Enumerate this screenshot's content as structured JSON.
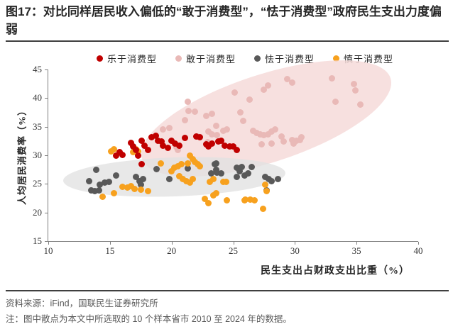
{
  "title": "图17：对比同样居民收入偏低的“敢于消费型”，“怯于消费型”政府民生支出力度偏弱",
  "legend": [
    {
      "label": "乐于消费型",
      "color": "#C00000"
    },
    {
      "label": "敢于消费型",
      "color": "#E9B9B7"
    },
    {
      "label": "怯于消费型",
      "color": "#595959"
    },
    {
      "label": "慎于消费型",
      "color": "#F7A11E"
    }
  ],
  "chart_data": {
    "type": "scatter",
    "xlabel": "民生支出占财政支出比重（%）",
    "ylabel": "人均居民消费率（%）",
    "xlim": [
      10,
      40
    ],
    "ylim": [
      15,
      45
    ],
    "xticks": [
      10,
      15,
      20,
      25,
      30,
      35,
      40
    ],
    "yticks": [
      15,
      20,
      25,
      30,
      35,
      40,
      45
    ],
    "grid": false,
    "legend_position": "top",
    "render_order": [
      1,
      2,
      3,
      0
    ],
    "annotations": [
      {
        "name": "pink-cluster-ellipse",
        "type": "ellipse",
        "cx": 27.7,
        "cy": 36.4,
        "rx": 10.6,
        "ry": 7.7,
        "rotate_deg": -18,
        "fill": "rgba(246,218,217,0.85)"
      },
      {
        "name": "gray-cluster-ellipse",
        "type": "ellipse",
        "cx": 20.2,
        "cy": 26.2,
        "rx": 9.0,
        "ry": 3.4,
        "rotate_deg": -2,
        "fill": "rgba(226,226,226,0.78)"
      }
    ],
    "series": [
      {
        "name": "乐于消费型",
        "color": "#C00000",
        "points": [
          [
            15.5,
            29.9
          ],
          [
            15.8,
            30.6
          ],
          [
            16.0,
            30.1
          ],
          [
            16.7,
            32.2
          ],
          [
            16.9,
            31.6
          ],
          [
            17.1,
            30.9
          ],
          [
            17.3,
            29.9
          ],
          [
            17.6,
            32.5
          ],
          [
            17.8,
            31.7
          ],
          [
            18.1,
            30.9
          ],
          [
            18.4,
            33.2
          ],
          [
            18.7,
            33.4
          ],
          [
            18.9,
            32.6
          ],
          [
            19.2,
            32.4
          ],
          [
            19.3,
            31.7
          ],
          [
            19.7,
            31.3
          ],
          [
            20.0,
            32.6
          ],
          [
            20.3,
            32.1
          ],
          [
            20.6,
            31.7
          ],
          [
            21.1,
            33.0
          ],
          [
            22.0,
            33.3
          ],
          [
            22.3,
            33.2
          ],
          [
            22.8,
            31.9
          ],
          [
            23.0,
            31.5
          ],
          [
            23.3,
            32.0
          ],
          [
            23.8,
            32.4
          ],
          [
            24.0,
            32.6
          ],
          [
            24.3,
            31.7
          ],
          [
            24.7,
            31.5
          ],
          [
            25.0,
            31.5
          ],
          [
            25.3,
            30.9
          ],
          [
            17.6,
            28.5
          ]
        ]
      },
      {
        "name": "敢于消费型",
        "color": "#E9B9B7",
        "points": [
          [
            19.3,
            34.5
          ],
          [
            19.8,
            34.8
          ],
          [
            20.4,
            31.4
          ],
          [
            20.5,
            30.9
          ],
          [
            21.3,
            39.4
          ],
          [
            21.1,
            36.1
          ],
          [
            21.4,
            37.7
          ],
          [
            21.9,
            37.6
          ],
          [
            22.1,
            33.3
          ],
          [
            22.8,
            36.9
          ],
          [
            22.9,
            32.3
          ],
          [
            23.0,
            34.1
          ],
          [
            23.3,
            37.3
          ],
          [
            23.3,
            33.7
          ],
          [
            23.6,
            35.2
          ],
          [
            23.7,
            33.5
          ],
          [
            24.2,
            34.3
          ],
          [
            24.5,
            34.5
          ],
          [
            25.1,
            41.0
          ],
          [
            25.6,
            37.5
          ],
          [
            25.8,
            36.0
          ],
          [
            26.3,
            39.7
          ],
          [
            26.6,
            34.3
          ],
          [
            26.9,
            33.9
          ],
          [
            27.2,
            33.7
          ],
          [
            27.5,
            33.5
          ],
          [
            27.8,
            33.7
          ],
          [
            28.1,
            34.1
          ],
          [
            28.4,
            34.5
          ],
          [
            27.5,
            41.5
          ],
          [
            27.8,
            42.2
          ],
          [
            28.9,
            33.3
          ],
          [
            29.4,
            43.3
          ],
          [
            29.8,
            42.7
          ],
          [
            29.8,
            32.7
          ],
          [
            30.1,
            32.5
          ],
          [
            27.3,
            31.9
          ],
          [
            28.1,
            32.1
          ],
          [
            29.1,
            32.4
          ],
          [
            29.9,
            32.1
          ],
          [
            30.4,
            32.7
          ],
          [
            30.5,
            33.1
          ],
          [
            33.0,
            43.4
          ],
          [
            34.8,
            42.5
          ],
          [
            34.9,
            41.3
          ],
          [
            33.3,
            39.4
          ],
          [
            35.3,
            38.9
          ]
        ]
      },
      {
        "name": "怯于消费型",
        "color": "#595959",
        "points": [
          [
            13.3,
            25.5
          ],
          [
            13.5,
            23.9
          ],
          [
            13.8,
            23.7
          ],
          [
            13.9,
            27.4
          ],
          [
            14.1,
            23.9
          ],
          [
            14.2,
            24.9
          ],
          [
            14.6,
            25.2
          ],
          [
            14.9,
            25.3
          ],
          [
            15.5,
            26.5
          ],
          [
            17.1,
            26.2
          ],
          [
            17.4,
            25.5
          ],
          [
            17.5,
            24.9
          ],
          [
            17.7,
            25.8
          ],
          [
            18.8,
            27.6
          ],
          [
            19.8,
            25.9
          ],
          [
            21.3,
            27.7
          ],
          [
            23.2,
            26.8
          ],
          [
            23.5,
            28.4
          ],
          [
            23.6,
            27.4
          ],
          [
            23.7,
            27.0
          ],
          [
            24.0,
            26.8
          ],
          [
            23.6,
            28.6
          ],
          [
            25.3,
            26.2
          ],
          [
            25.3,
            27.8
          ],
          [
            25.5,
            27.2
          ],
          [
            25.7,
            28.0
          ],
          [
            25.9,
            26.5
          ],
          [
            26.2,
            26.8
          ],
          [
            26.5,
            28.0
          ],
          [
            27.6,
            26.2
          ],
          [
            27.9,
            25.8
          ],
          [
            28.1,
            25.5
          ],
          [
            28.6,
            25.8
          ],
          [
            27.7,
            23.9
          ]
        ]
      },
      {
        "name": "慎于消费型",
        "color": "#F7A11E",
        "points": [
          [
            15.1,
            30.7
          ],
          [
            15.3,
            31.1
          ],
          [
            16.9,
            30.5
          ],
          [
            17.1,
            31.1
          ],
          [
            17.3,
            30.7
          ],
          [
            14.4,
            22.7
          ],
          [
            15.3,
            23.4
          ],
          [
            16.0,
            24.5
          ],
          [
            16.4,
            24.3
          ],
          [
            16.7,
            24.6
          ],
          [
            17.0,
            24.1
          ],
          [
            17.5,
            24.0
          ],
          [
            18.1,
            23.8
          ],
          [
            19.1,
            28.6
          ],
          [
            20.0,
            27.2
          ],
          [
            20.2,
            27.8
          ],
          [
            20.5,
            28.1
          ],
          [
            20.8,
            28.4
          ],
          [
            21.3,
            28.6
          ],
          [
            21.9,
            28.8
          ],
          [
            22.1,
            28.4
          ],
          [
            22.3,
            28.1
          ],
          [
            20.6,
            26.4
          ],
          [
            20.9,
            25.8
          ],
          [
            21.2,
            25.5
          ],
          [
            21.5,
            25.2
          ],
          [
            21.7,
            25.8
          ],
          [
            23.1,
            25.3
          ],
          [
            23.4,
            25.8
          ],
          [
            24.2,
            25.3
          ],
          [
            24.4,
            25.3
          ],
          [
            22.7,
            22.4
          ],
          [
            23.0,
            21.6
          ],
          [
            23.4,
            23.0
          ],
          [
            23.6,
            23.4
          ],
          [
            24.5,
            22.1
          ],
          [
            25.9,
            22.1
          ],
          [
            26.0,
            22.2
          ],
          [
            26.4,
            22.2
          ],
          [
            26.7,
            22.1
          ],
          [
            27.4,
            20.6
          ],
          [
            27.7,
            23.7
          ],
          [
            27.6,
            24.9
          ],
          [
            21.5,
            29.9
          ],
          [
            21.7,
            29.3
          ]
        ]
      }
    ]
  },
  "footer": {
    "source": "资料来源：iFind，国联民生证券研究所",
    "note": "注：图中散点为本文中所选取的 10 个样本省市 2010 至 2024 年的数据。"
  }
}
